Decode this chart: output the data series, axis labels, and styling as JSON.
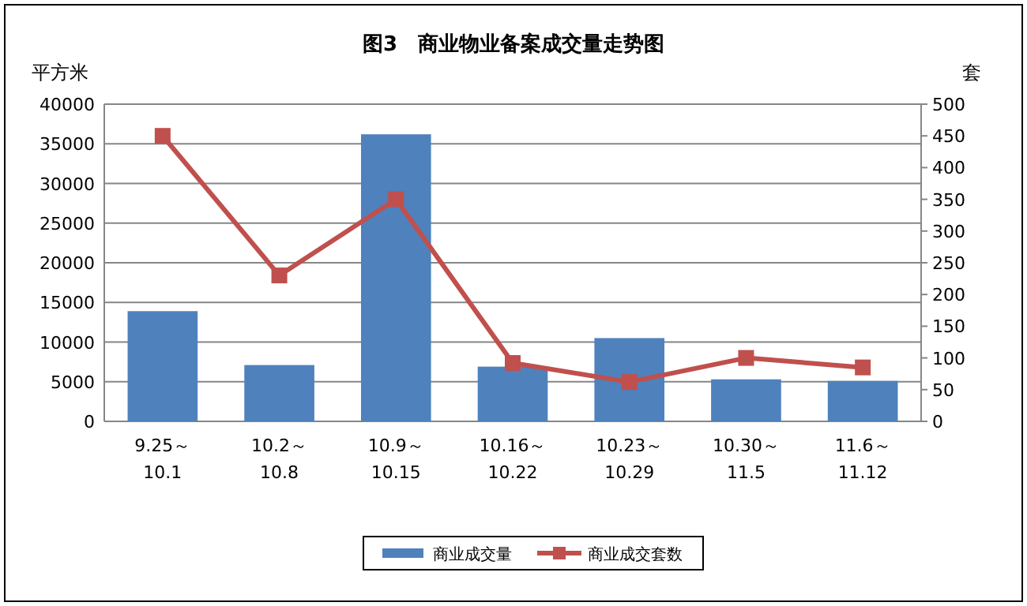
{
  "chart_data": {
    "type": "bar",
    "title": "图3　商业物业备案成交量走势图",
    "ylabel": "平方米",
    "y2label": "套",
    "categories": [
      "9.25～\n10.1",
      "10.2～\n10.8",
      "10.9～\n10.15",
      "10.16～\n10.22",
      "10.23～\n10.29",
      "10.30～\n11.5",
      "11.6～\n11.12"
    ],
    "series": [
      {
        "name": "商业成交量",
        "color": "#4f81bd",
        "values": [
          13900,
          7100,
          36200,
          6900,
          10500,
          5300,
          5100
        ]
      },
      {
        "name": "商业成交套数",
        "type": "line",
        "axis": "y2",
        "color": "#c0504d",
        "marker": "square",
        "values": [
          450,
          230,
          350,
          92,
          62,
          100,
          85
        ]
      }
    ],
    "ylim": [
      0,
      40000
    ],
    "yticks": [
      0,
      5000,
      10000,
      15000,
      20000,
      25000,
      30000,
      35000,
      40000
    ],
    "y2lim": [
      0,
      500
    ],
    "y2ticks": [
      0,
      50,
      100,
      150,
      200,
      250,
      300,
      350,
      400,
      450,
      500
    ],
    "grid": "y",
    "legend": "bottom"
  }
}
